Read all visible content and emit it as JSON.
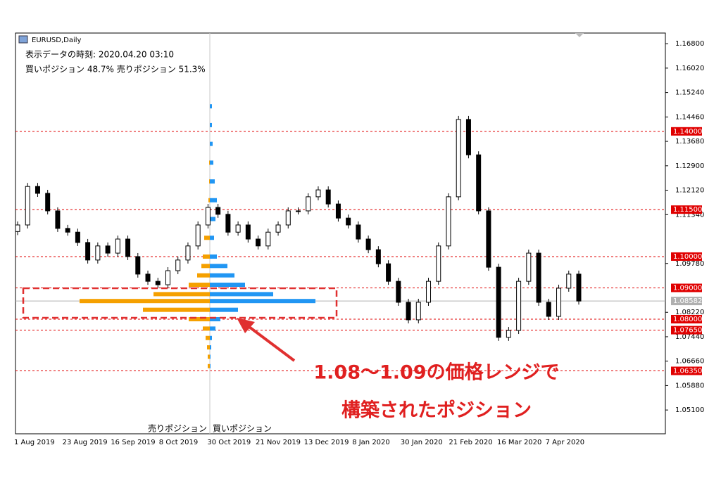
{
  "chart_data": {
    "type": "candlestick",
    "symbol": "EURUSD,Daily",
    "info_time": "表示データの時刻: 2020.04.20 03:10",
    "info_ratio": "買いポジション 48.7% 売りポジション 51.3%",
    "profile_sell_label": "売りポジション",
    "profile_buy_label": "買いポジション",
    "annotation_line1": "1.08～1.09の価格レンジで",
    "annotation_line2": "構築されたポジション",
    "x_labels": [
      "1 Aug 2019",
      "23 Aug 2019",
      "16 Sep 2019",
      "8 Oct 2019",
      "30 Oct 2019",
      "21 Nov 2019",
      "13 Dec 2019",
      "8 Jan 2020",
      "30 Jan 2020",
      "21 Feb 2020",
      "16 Mar 2020",
      "7 Apr 2020"
    ],
    "open": [
      1.108,
      1.1101,
      1.1224,
      1.1202,
      1.1146,
      1.109,
      1.1078,
      1.1045,
      1.0989,
      1.1034,
      1.1011,
      1.1056,
      1.1,
      1.0944,
      1.0921,
      1.091,
      1.0955,
      1.0989,
      1.1034,
      1.1101,
      1.1157,
      1.1135,
      1.1078,
      1.1101,
      1.1056,
      1.1034,
      1.1078,
      1.1101,
      1.1146,
      1.1146,
      1.1191,
      1.1213,
      1.1168,
      1.1123,
      1.1101,
      1.1056,
      1.1022,
      1.0977,
      1.0921,
      1.0854,
      1.0798,
      1.0854,
      1.0921,
      1.1034,
      1.1191,
      1.1438,
      1.1325,
      1.1146,
      1.0966,
      1.0742,
      1.0764,
      1.0921,
      1.1011,
      1.0854,
      1.0809,
      1.0899,
      1.0944
    ],
    "close": [
      1.1101,
      1.1224,
      1.1202,
      1.1146,
      1.109,
      1.1078,
      1.1045,
      1.0989,
      1.1034,
      1.1011,
      1.1056,
      1.1,
      1.0944,
      1.0921,
      1.091,
      1.0955,
      1.0989,
      1.1034,
      1.1101,
      1.1157,
      1.1135,
      1.1078,
      1.1101,
      1.1056,
      1.1034,
      1.1078,
      1.1101,
      1.1146,
      1.1146,
      1.1191,
      1.1213,
      1.1168,
      1.1123,
      1.1101,
      1.1056,
      1.1022,
      1.0977,
      1.0921,
      1.0854,
      1.0798,
      1.0854,
      1.0921,
      1.1034,
      1.1191,
      1.1438,
      1.1325,
      1.1146,
      1.0966,
      1.0742,
      1.0764,
      1.0921,
      1.1011,
      1.0854,
      1.0809,
      1.0899,
      1.0944,
      1.0858
    ],
    "ylim": [
      1.0434,
      1.1714
    ],
    "yticks": [
      {
        "value": 1.168,
        "label": "1.16800"
      },
      {
        "value": 1.1602,
        "label": "1.16020"
      },
      {
        "value": 1.1524,
        "label": "1.15240"
      },
      {
        "value": 1.1446,
        "label": "1.14460"
      },
      {
        "value": 1.1368,
        "label": "1.13680"
      },
      {
        "value": 1.129,
        "label": "1.12900"
      },
      {
        "value": 1.1212,
        "label": "1.12120"
      },
      {
        "value": 1.1134,
        "label": "1.11340"
      },
      {
        "value": 1.0978,
        "label": "1.09780"
      },
      {
        "value": 1.0822,
        "label": "1.08220"
      },
      {
        "value": 1.0744,
        "label": "1.07440"
      },
      {
        "value": 1.0666,
        "label": "1.06660"
      },
      {
        "value": 1.0588,
        "label": "1.05880"
      },
      {
        "value": 1.051,
        "label": "1.05100"
      }
    ],
    "levels": [
      {
        "value": 1.14,
        "label": "1.14000"
      },
      {
        "value": 1.115,
        "label": "1.11500"
      },
      {
        "value": 1.1,
        "label": "1.10000"
      },
      {
        "value": 1.09,
        "label": "1.09000"
      },
      {
        "value": 1.08,
        "label": "1.08000"
      },
      {
        "value": 1.0765,
        "label": "1.07650"
      },
      {
        "value": 1.0635,
        "label": "1.06350"
      }
    ],
    "level_color": "#e00000",
    "current_price": {
      "value": 1.08582,
      "label": "1.08582"
    },
    "profile": {
      "price": [
        1.148,
        1.142,
        1.136,
        1.13,
        1.124,
        1.118,
        1.112,
        1.106,
        1.1,
        1.097,
        1.094,
        1.091,
        1.088,
        1.0858,
        1.083,
        1.08,
        1.077,
        1.074,
        1.071,
        1.068,
        1.065
      ],
      "buy": [
        3,
        3,
        4,
        5,
        7,
        10,
        8,
        6,
        10,
        25,
        35,
        50,
        90,
        150,
        40,
        15,
        8,
        3,
        2,
        1,
        1
      ],
      "sell": [
        0,
        0,
        0,
        1,
        1,
        2,
        4,
        8,
        10,
        12,
        18,
        30,
        80,
        185,
        95,
        30,
        10,
        6,
        4,
        3,
        3
      ],
      "buy_color": "#2196f3",
      "sell_color": "#f5a000"
    }
  }
}
